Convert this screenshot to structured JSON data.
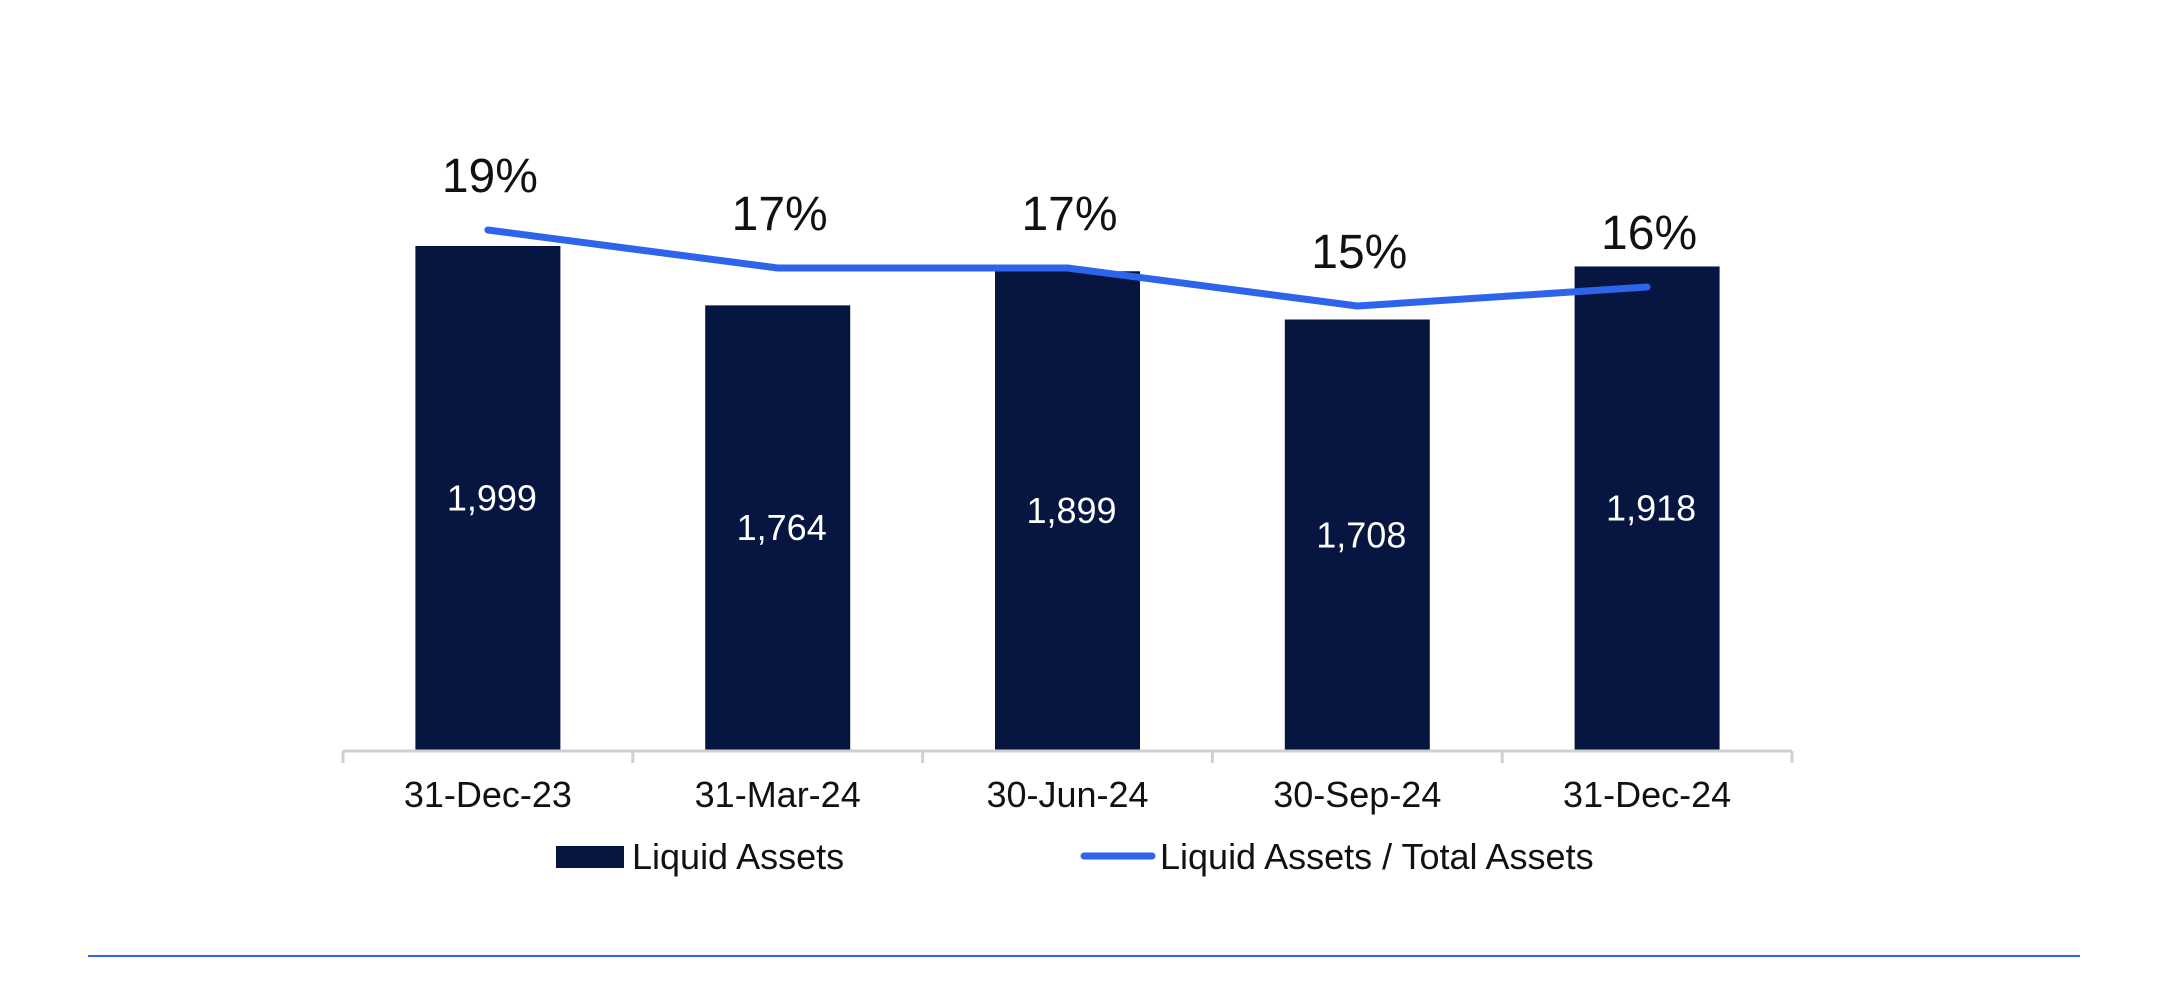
{
  "colors": {
    "bar": "#061640",
    "line": "#2E64EC",
    "axis": "#d0d0d0",
    "divider": "#2E64EC"
  },
  "chart_data": {
    "type": "bar",
    "title": "",
    "xlabel": "",
    "ylabel": "",
    "categories": [
      "31-Dec-23",
      "31-Mar-24",
      "30-Jun-24",
      "30-Sep-24",
      "31-Dec-24"
    ],
    "series": [
      {
        "name": "Liquid Assets",
        "type": "bar",
        "values": [
          1999,
          1764,
          1899,
          1708,
          1918
        ],
        "labels": [
          "1,999",
          "1,764",
          "1,899",
          "1,708",
          "1,918"
        ]
      },
      {
        "name": "Liquid Assets / Total Assets",
        "type": "line",
        "values": [
          19,
          17,
          17,
          15,
          16
        ],
        "labels": [
          "19%",
          "17%",
          "17%",
          "15%",
          "16%"
        ],
        "unit": "%"
      }
    ],
    "legend": [
      "Liquid Assets",
      "Liquid Assets / Total Assets"
    ],
    "legend_position": "bottom",
    "grid": false
  }
}
